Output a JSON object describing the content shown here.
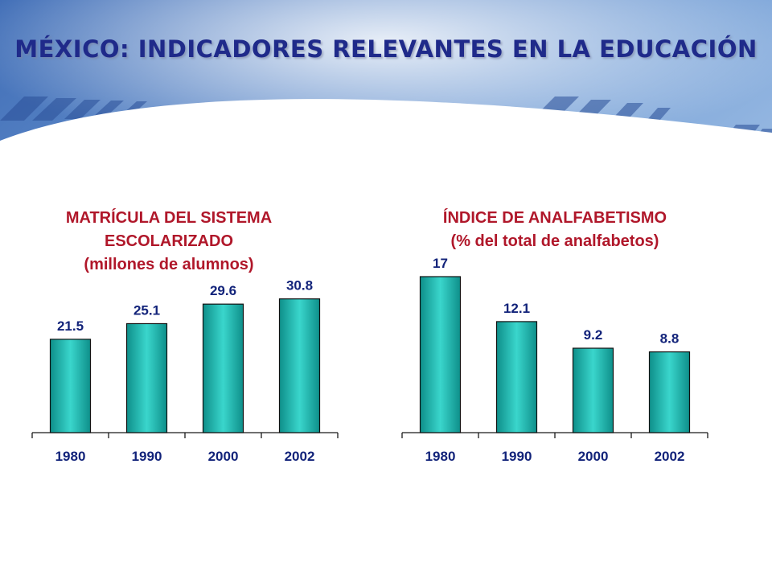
{
  "title": "MÉXICO: INDICADORES RELEVANTES EN LA EDUCACIÓN",
  "colors": {
    "title": "#1f2a8a",
    "chart_title": "#b0172a",
    "labels": "#12237a",
    "bar_fill": "#1fb8b0",
    "background_blue": "#4e7fc4"
  },
  "chart_data": [
    {
      "type": "bar",
      "title_lines": [
        "MATRÍCULA DEL SISTEMA",
        "ESCOLARIZADO",
        "(millones de alumnos)"
      ],
      "categories": [
        "1980",
        "1990",
        "2000",
        "2002"
      ],
      "values": [
        21.5,
        25.1,
        29.6,
        30.8
      ],
      "value_labels": [
        "21.5",
        "25.1",
        "29.6",
        "30.8"
      ],
      "ylim": [
        0,
        45
      ],
      "grid": false
    },
    {
      "type": "bar",
      "title_lines": [
        "ÍNDICE DE ANALFABETISMO",
        "(% del total de analfabetos)"
      ],
      "categories": [
        "1980",
        "1990",
        "2000",
        "2002"
      ],
      "values": [
        17,
        12.1,
        9.2,
        8.8
      ],
      "value_labels": [
        "17",
        "12.1",
        "9.2",
        "8.8"
      ],
      "ylim": [
        0,
        17
      ],
      "grid": false
    }
  ]
}
